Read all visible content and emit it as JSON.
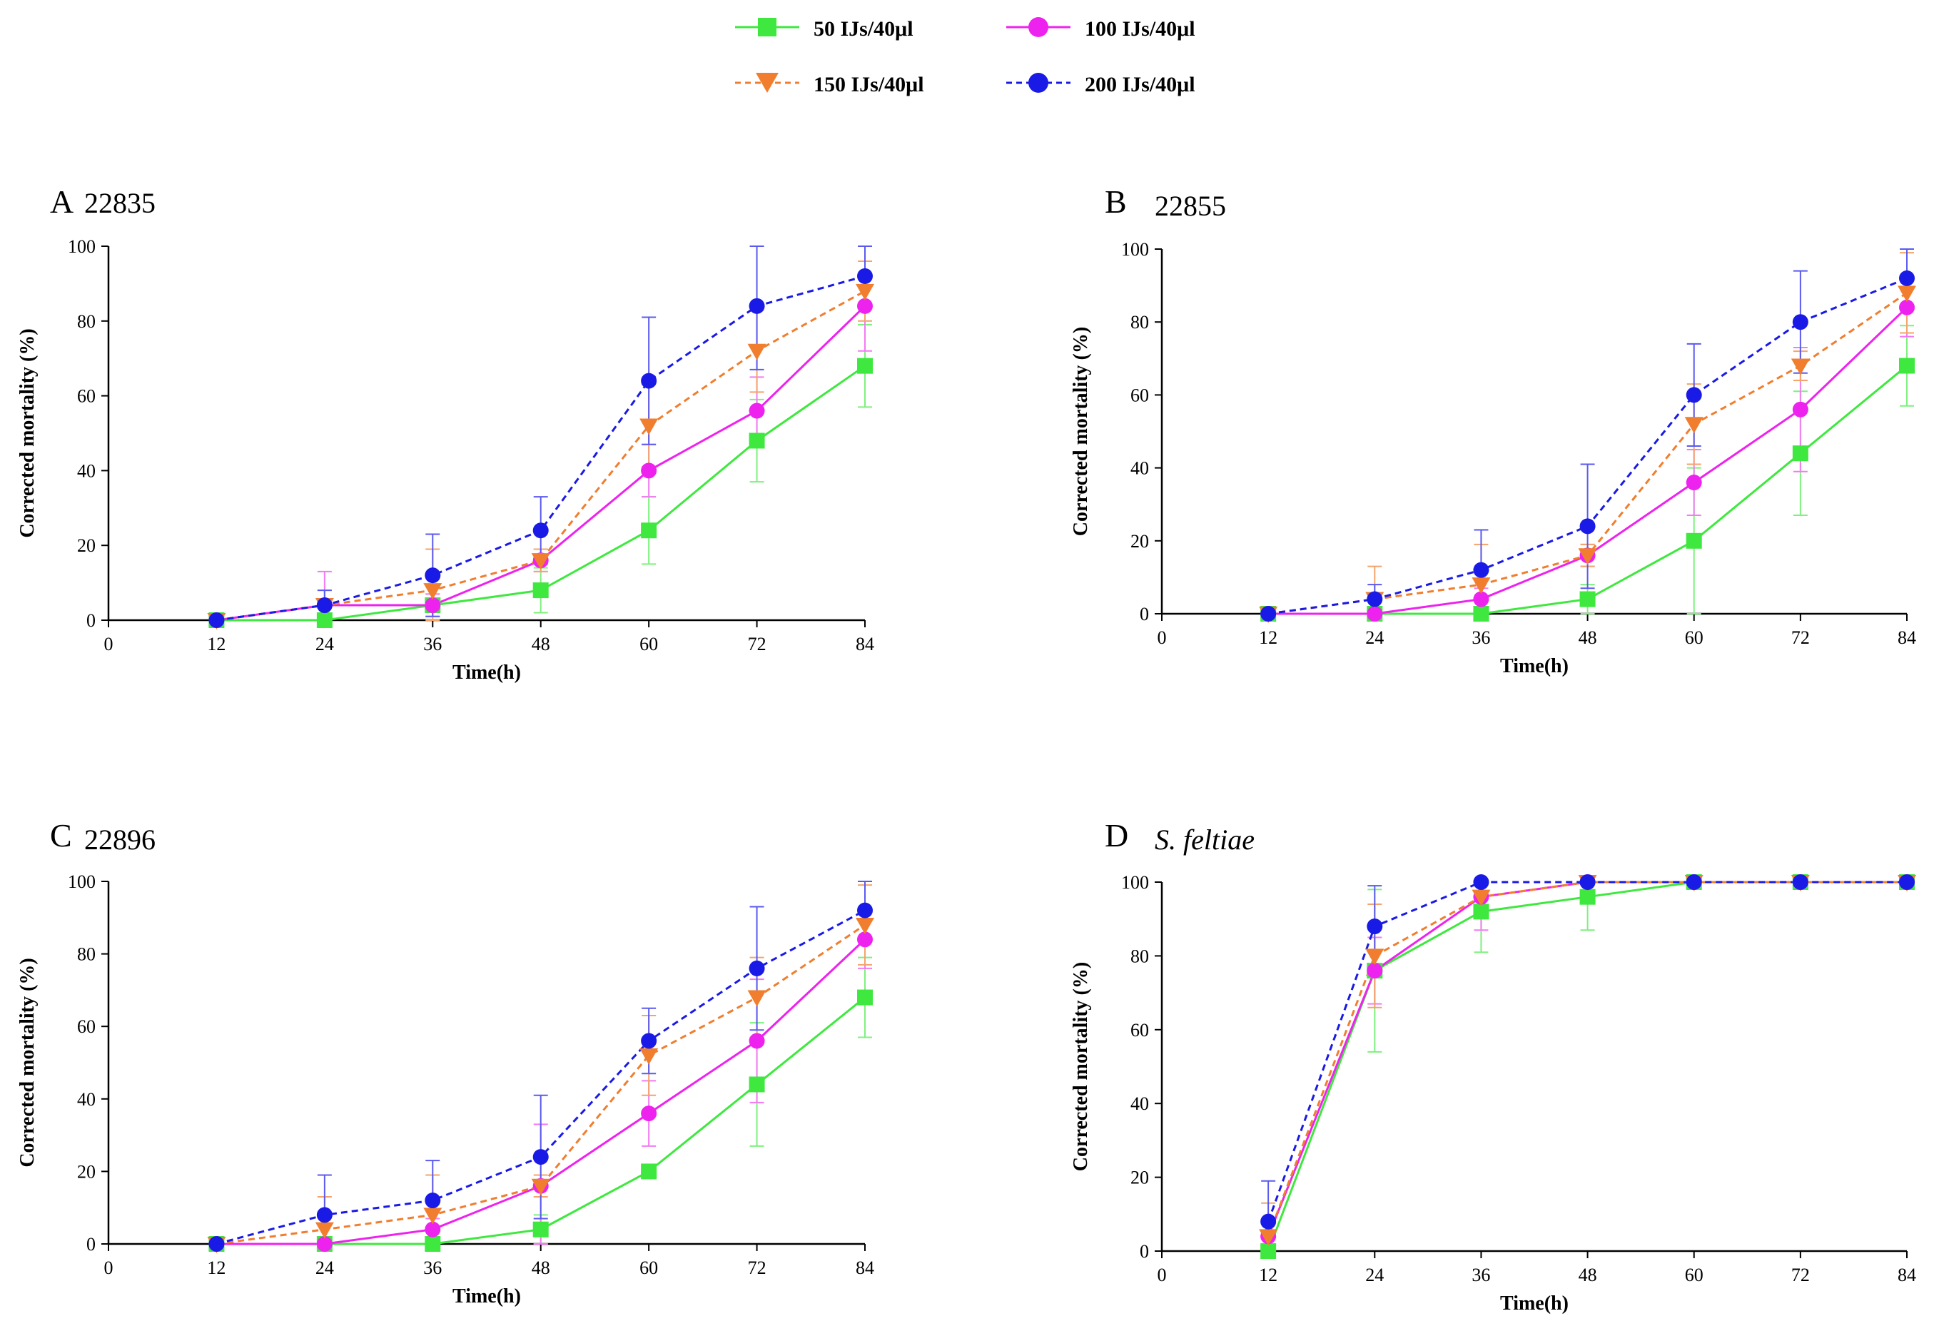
{
  "chart_data": [
    {
      "type": "line",
      "panel": "A",
      "title": "22835",
      "xlabel": "Time(h)",
      "ylabel": "Corrected mortality (%)",
      "x": [
        0,
        12,
        24,
        36,
        48,
        60,
        72,
        84
      ],
      "xticks": [
        "0",
        "12",
        "24",
        "36",
        "48",
        "60",
        "72",
        "84"
      ],
      "yticks": [
        "0",
        "20",
        "40",
        "60",
        "80",
        "100"
      ],
      "xlim": [
        0,
        84
      ],
      "ylim": [
        0,
        100
      ],
      "series": [
        {
          "name": "50 IJs/40μl",
          "x": [
            12,
            24,
            36,
            48,
            60,
            72,
            84
          ],
          "values": [
            0,
            0,
            4,
            8,
            24,
            48,
            68
          ],
          "err": [
            1,
            0,
            3,
            6,
            9,
            11,
            11
          ]
        },
        {
          "name": "100 IJs/40μl",
          "x": [
            12,
            24,
            36,
            48,
            60,
            72,
            84
          ],
          "values": [
            0,
            4,
            4,
            16,
            40,
            56,
            84
          ],
          "err": [
            1,
            9,
            3,
            3,
            7,
            9,
            12
          ]
        },
        {
          "name": "150 IJs/40μl",
          "x": [
            12,
            24,
            36,
            48,
            60,
            72,
            84
          ],
          "values": [
            0,
            4,
            8,
            16,
            52,
            72,
            88
          ],
          "err": [
            1,
            4,
            11,
            3,
            11,
            11,
            8
          ]
        },
        {
          "name": "200 IJs/40μl",
          "x": [
            12,
            24,
            36,
            48,
            60,
            72,
            84
          ],
          "values": [
            0,
            4,
            12,
            24,
            64,
            84,
            92
          ],
          "err": [
            1,
            4,
            11,
            9,
            17,
            17,
            8
          ]
        }
      ]
    },
    {
      "type": "line",
      "panel": "B",
      "title": "22855",
      "xlabel": "Time(h)",
      "ylabel": "Corrected mortality (%)",
      "x": [
        0,
        12,
        24,
        36,
        48,
        60,
        72,
        84
      ],
      "xticks": [
        "0",
        "12",
        "24",
        "36",
        "48",
        "60",
        "72",
        "84"
      ],
      "yticks": [
        "0",
        "20",
        "40",
        "60",
        "80",
        "100"
      ],
      "xlim": [
        0,
        84
      ],
      "ylim": [
        0,
        100
      ],
      "series": [
        {
          "name": "50 IJs/40μl",
          "x": [
            12,
            24,
            36,
            48,
            60,
            72,
            84
          ],
          "values": [
            0,
            0,
            0,
            4,
            20,
            44,
            68
          ],
          "err": [
            1,
            0,
            0,
            4,
            20,
            17,
            11
          ]
        },
        {
          "name": "100 IJs/40μl",
          "x": [
            12,
            24,
            36,
            48,
            60,
            72,
            84
          ],
          "values": [
            0,
            0,
            4,
            16,
            36,
            56,
            84
          ],
          "err": [
            1,
            0,
            3,
            3,
            9,
            17,
            8
          ]
        },
        {
          "name": "150 IJs/40μl",
          "x": [
            12,
            24,
            36,
            48,
            60,
            72,
            84
          ],
          "values": [
            0,
            4,
            8,
            16,
            52,
            68,
            88
          ],
          "err": [
            1,
            9,
            11,
            3,
            11,
            4,
            11
          ]
        },
        {
          "name": "200 IJs/40μl",
          "x": [
            12,
            24,
            36,
            48,
            60,
            72,
            84
          ],
          "values": [
            0,
            4,
            12,
            24,
            60,
            80,
            92
          ],
          "err": [
            1,
            4,
            11,
            17,
            14,
            14,
            8
          ]
        }
      ]
    },
    {
      "type": "line",
      "panel": "C",
      "title": "22896",
      "xlabel": "Time(h)",
      "ylabel": "Corrected mortality (%)",
      "x": [
        0,
        12,
        24,
        36,
        48,
        60,
        72,
        84
      ],
      "xticks": [
        "0",
        "12",
        "24",
        "36",
        "48",
        "60",
        "72",
        "84"
      ],
      "yticks": [
        "0",
        "20",
        "40",
        "60",
        "80",
        "100"
      ],
      "xlim": [
        0,
        84
      ],
      "ylim": [
        0,
        100
      ],
      "series": [
        {
          "name": "50 IJs/40μl",
          "x": [
            12,
            24,
            36,
            48,
            60,
            72,
            84
          ],
          "values": [
            0,
            0,
            0,
            4,
            20,
            44,
            68
          ],
          "err": [
            1,
            0,
            0,
            4,
            0,
            17,
            11
          ]
        },
        {
          "name": "100 IJs/40μl",
          "x": [
            12,
            24,
            36,
            48,
            60,
            72,
            84
          ],
          "values": [
            0,
            0,
            4,
            16,
            36,
            56,
            84
          ],
          "err": [
            1,
            0,
            3,
            17,
            9,
            17,
            8
          ]
        },
        {
          "name": "150 IJs/40μl",
          "x": [
            12,
            24,
            36,
            48,
            60,
            72,
            84
          ],
          "values": [
            0,
            4,
            8,
            16,
            52,
            68,
            88
          ],
          "err": [
            1,
            9,
            11,
            3,
            11,
            11,
            11
          ]
        },
        {
          "name": "200 IJs/40μl",
          "x": [
            12,
            24,
            36,
            48,
            60,
            72,
            84
          ],
          "values": [
            0,
            8,
            12,
            24,
            56,
            76,
            92
          ],
          "err": [
            1,
            11,
            11,
            17,
            9,
            17,
            8
          ]
        }
      ]
    },
    {
      "type": "line",
      "panel": "D",
      "title": "S. feltiae",
      "title_italic": true,
      "xlabel": "Time(h)",
      "ylabel": "Corrected mortality (%)",
      "x": [
        0,
        12,
        24,
        36,
        48,
        60,
        72,
        84
      ],
      "xticks": [
        "0",
        "12",
        "24",
        "36",
        "48",
        "60",
        "72",
        "84"
      ],
      "yticks": [
        "0",
        "20",
        "40",
        "60",
        "80",
        "100"
      ],
      "xlim": [
        0,
        84
      ],
      "ylim": [
        0,
        100
      ],
      "series": [
        {
          "name": "50 IJs/40μl",
          "x": [
            12,
            24,
            36,
            48,
            60,
            72,
            84
          ],
          "values": [
            0,
            76,
            92,
            96,
            100,
            100,
            100
          ],
          "err": [
            1,
            22,
            11,
            9,
            0,
            0,
            0
          ]
        },
        {
          "name": "100 IJs/40μl",
          "x": [
            12,
            24,
            36,
            48,
            60,
            72,
            84
          ],
          "values": [
            4,
            76,
            96,
            100,
            100,
            100,
            100
          ],
          "err": [
            4,
            9,
            9,
            0,
            0,
            0,
            0
          ]
        },
        {
          "name": "150 IJs/40μl",
          "x": [
            12,
            24,
            36,
            48,
            60,
            72,
            84
          ],
          "values": [
            4,
            80,
            96,
            100,
            100,
            100,
            100
          ],
          "err": [
            9,
            14,
            4,
            0,
            0,
            0,
            0
          ]
        },
        {
          "name": "200 IJs/40μl",
          "x": [
            12,
            24,
            36,
            48,
            60,
            72,
            84
          ],
          "values": [
            8,
            88,
            100,
            100,
            100,
            100,
            100
          ],
          "err": [
            11,
            11,
            0,
            0,
            0,
            0,
            0
          ]
        }
      ]
    }
  ],
  "legend": {
    "placement": "top-center",
    "entries": [
      {
        "label": "50 IJs/40μl",
        "color": "#3fe83f",
        "marker": "square",
        "dash": "solid"
      },
      {
        "label": "100 IJs/40μl",
        "color": "#ee22ee",
        "marker": "circle",
        "dash": "solid"
      },
      {
        "label": "150 IJs/40μl",
        "color": "#f07e2e",
        "marker": "triangle-down",
        "dash": "dashed"
      },
      {
        "label": "200 IJs/40μl",
        "color": "#1a1ae6",
        "marker": "circle",
        "dash": "dashed"
      }
    ]
  }
}
